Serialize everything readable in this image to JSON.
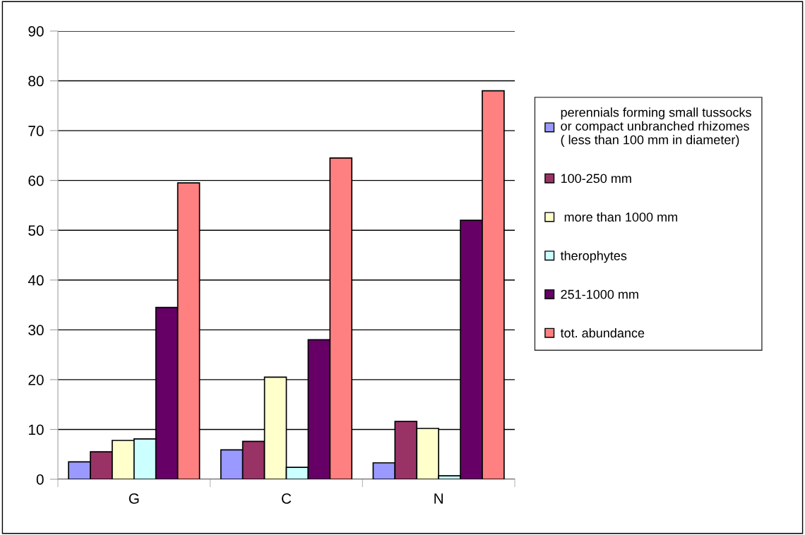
{
  "chart_data": {
    "type": "bar",
    "categories": [
      "G",
      "C",
      "N"
    ],
    "series": [
      {
        "name": "perennials forming small tussocks\nor compact unbranched rhizomes\n( less than 100 mm in diameter)",
        "color": "#9999ff",
        "values": [
          3.5,
          5.9,
          3.3
        ]
      },
      {
        "name": "100-250 mm",
        "color": "#993366",
        "values": [
          5.5,
          7.6,
          11.6
        ]
      },
      {
        "name": " more than 1000 mm",
        "color": "#ffffcc",
        "values": [
          7.8,
          20.5,
          10.2
        ]
      },
      {
        "name": "therophytes",
        "color": "#ccffff",
        "values": [
          8.1,
          2.4,
          0.7
        ]
      },
      {
        "name": "251-1000 mm",
        "color": "#660066",
        "values": [
          34.5,
          28,
          52
        ]
      },
      {
        "name": "tot. abundance",
        "color": "#ff8080",
        "values": [
          59.5,
          64.5,
          78
        ]
      }
    ],
    "ylim": [
      0,
      90
    ],
    "yticks": [
      0,
      10,
      20,
      30,
      40,
      50,
      60,
      70,
      80,
      90
    ],
    "grid": "y",
    "legend": "right"
  }
}
